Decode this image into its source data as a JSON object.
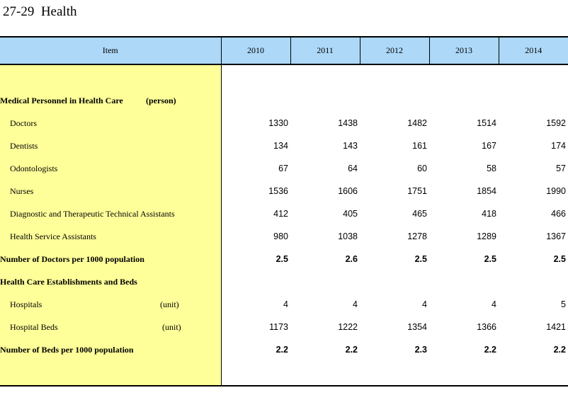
{
  "title": "27-29  Health",
  "header": {
    "item": "Item",
    "years": [
      "2010",
      "2011",
      "2012",
      "2013",
      "2014"
    ]
  },
  "rows": [
    {
      "label": "Medical Personnel in Health Care",
      "unit": "(person)",
      "bold": true,
      "values": [
        "",
        "",
        "",
        "",
        ""
      ]
    },
    {
      "label": "Doctors",
      "unit": "",
      "bold": false,
      "values": [
        "1330",
        "1438",
        "1482",
        "1514",
        "1592"
      ]
    },
    {
      "label": "Dentists",
      "unit": "",
      "bold": false,
      "values": [
        "134",
        "143",
        "161",
        "167",
        "174"
      ]
    },
    {
      "label": "Odontologists",
      "unit": "",
      "bold": false,
      "values": [
        "67",
        "64",
        "60",
        "58",
        "57"
      ]
    },
    {
      "label": "Nurses",
      "unit": "",
      "bold": false,
      "values": [
        "1536",
        "1606",
        "1751",
        "1854",
        "1990"
      ]
    },
    {
      "label": "Diagnostic and Therapeutic Technical Assistants",
      "unit": "",
      "bold": false,
      "values": [
        "412",
        "405",
        "465",
        "418",
        "466"
      ]
    },
    {
      "label": "Health Service Assistants",
      "unit": "",
      "bold": false,
      "values": [
        "980",
        "1038",
        "1278",
        "1289",
        "1367"
      ]
    },
    {
      "label": "Number of Doctors per 1000 population",
      "unit": "",
      "bold": true,
      "values": [
        "2.5",
        "2.6",
        "2.5",
        "2.5",
        "2.5"
      ]
    },
    {
      "label": "Health Care Establishments and Beds",
      "unit": "",
      "bold": true,
      "values": [
        "",
        "",
        "",
        "",
        ""
      ]
    },
    {
      "label": "Hospitals",
      "unit": "(unit)",
      "bold": false,
      "values": [
        "4",
        "4",
        "4",
        "4",
        "5"
      ]
    },
    {
      "label": "Hospital Beds",
      "unit": "(unit)",
      "bold": false,
      "values": [
        "1173",
        "1222",
        "1354",
        "1366",
        "1421"
      ]
    },
    {
      "label": "Number of Beds per 1000 population",
      "unit": "",
      "bold": true,
      "values": [
        "2.2",
        "2.2",
        "2.3",
        "2.2",
        "2.2"
      ]
    }
  ]
}
